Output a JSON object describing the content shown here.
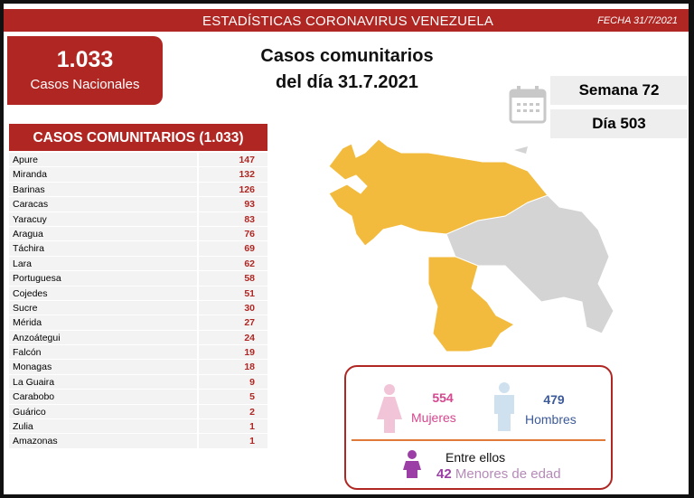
{
  "header": {
    "title": "ESTADÍSTICAS CORONAVIRUS VENEZUELA",
    "date": "FECHA 31/7/2021"
  },
  "national": {
    "value": "1.033",
    "label": "Casos Nacionales"
  },
  "main_title": {
    "line1": "Casos comunitarios",
    "line2": "del día 31.7.2021"
  },
  "calendar": {
    "week": "Semana 72",
    "day": "Día 503",
    "icon": "calendar-icon"
  },
  "table": {
    "header": "CASOS COMUNITARIOS (1.033)",
    "rows": [
      {
        "state": "Apure",
        "value": "147"
      },
      {
        "state": "Miranda",
        "value": "132"
      },
      {
        "state": "Barinas",
        "value": "126"
      },
      {
        "state": "Caracas",
        "value": "93"
      },
      {
        "state": "Yaracuy",
        "value": "83"
      },
      {
        "state": "Aragua",
        "value": "76"
      },
      {
        "state": "Táchira",
        "value": "69"
      },
      {
        "state": "Lara",
        "value": "62"
      },
      {
        "state": "Portuguesa",
        "value": "58"
      },
      {
        "state": "Cojedes",
        "value": "51"
      },
      {
        "state": "Sucre",
        "value": "30"
      },
      {
        "state": "Mérida",
        "value": "27"
      },
      {
        "state": "Anzoátegui",
        "value": "24"
      },
      {
        "state": "Falcón",
        "value": "19"
      },
      {
        "state": "Monagas",
        "value": "18"
      },
      {
        "state": "La Guaira",
        "value": "9"
      },
      {
        "state": "Carabobo",
        "value": "5"
      },
      {
        "state": "Guárico",
        "value": "2"
      },
      {
        "state": "Zulia",
        "value": "1"
      },
      {
        "state": "Amazonas",
        "value": "1"
      }
    ]
  },
  "map": {
    "affected_color": "#f2bb3d",
    "unaffected_color": "#d4d4d4"
  },
  "demographics": {
    "women_value": "554",
    "women_label": "Mujeres",
    "women_color": "#d6478f",
    "men_value": "479",
    "men_label": "Hombres",
    "men_color": "#3d5a99",
    "minors_intro": "Entre ellos",
    "minors_value": "42",
    "minors_label": "Menores de edad",
    "minors_color": "#9b3fa6"
  }
}
